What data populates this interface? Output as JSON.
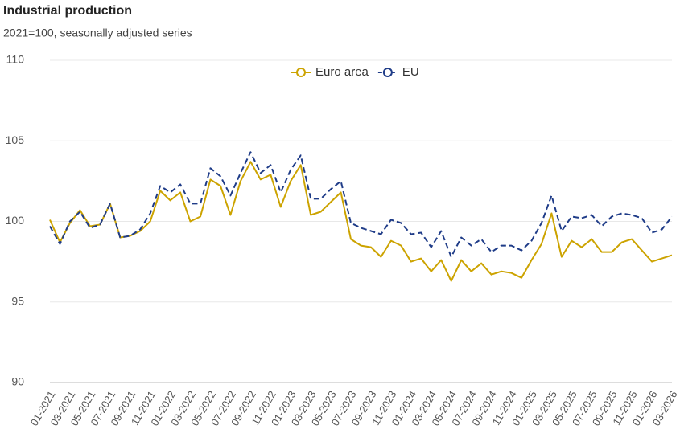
{
  "chart_data": {
    "type": "line",
    "title": "Industrial production",
    "subtitle": "2021=100, seasonally adjusted series",
    "categories": [
      "01-2021",
      null,
      "03-2021",
      null,
      "05-2021",
      null,
      "07-2021",
      null,
      "09-2021",
      null,
      "11-2021",
      null,
      "01-2022",
      null,
      "03-2022",
      null,
      "05-2022",
      null,
      "07-2022",
      null,
      "09-2022",
      null,
      "11-2022",
      null,
      "01-2023",
      null,
      "03-2023",
      null,
      "05-2023",
      null,
      "07-2023",
      null,
      "09-2023",
      null,
      "11-2023",
      null,
      "01-2024",
      null,
      "03-2024",
      null,
      "05-2024",
      null,
      "07-2024",
      null,
      "09-2024",
      null,
      "11-2024",
      null,
      "01-2025",
      null,
      "03-2025",
      null,
      "05-2025",
      null,
      "07-2025",
      null,
      "09-2025",
      null,
      "11-2025",
      null,
      "01-2026",
      null,
      "03-2026"
    ],
    "series": [
      {
        "name": "Euro area",
        "color": "#cca300",
        "dashed": false,
        "values": [
          100.1,
          98.7,
          99.9,
          100.7,
          99.7,
          99.8,
          101.1,
          99.0,
          99.1,
          99.4,
          100.0,
          101.9,
          101.3,
          101.8,
          100.0,
          100.3,
          102.6,
          102.2,
          100.4,
          102.5,
          103.7,
          102.6,
          102.9,
          100.9,
          102.5,
          103.5,
          100.4,
          100.6,
          101.2,
          101.8,
          98.9,
          98.5,
          98.4,
          97.8,
          98.8,
          98.5,
          97.5,
          97.7,
          96.9,
          97.6,
          96.3,
          97.6,
          96.9,
          97.4,
          96.7,
          96.9,
          96.8,
          96.5,
          97.6,
          98.6,
          100.5,
          97.8,
          98.8,
          98.4,
          98.9,
          98.1,
          98.1,
          98.7,
          98.9,
          98.2,
          97.5,
          97.7,
          97.9
        ]
      },
      {
        "name": "EU",
        "color": "#1f3c88",
        "dashed": true,
        "values": [
          99.7,
          98.6,
          100.0,
          100.6,
          99.6,
          99.8,
          101.1,
          99.0,
          99.1,
          99.5,
          100.5,
          102.2,
          101.8,
          102.3,
          101.1,
          101.1,
          103.3,
          102.8,
          101.6,
          103.0,
          104.3,
          103.0,
          103.5,
          101.8,
          103.2,
          104.1,
          101.4,
          101.4,
          102.0,
          102.5,
          99.9,
          99.6,
          99.4,
          99.2,
          100.1,
          99.9,
          99.2,
          99.3,
          98.4,
          99.4,
          97.8,
          99.0,
          98.5,
          98.9,
          98.1,
          98.5,
          98.5,
          98.2,
          98.8,
          99.9,
          101.6,
          99.4,
          100.3,
          100.2,
          100.4,
          99.7,
          100.3,
          100.5,
          100.4,
          100.2,
          99.3,
          99.5,
          100.3
        ]
      }
    ],
    "ylim": [
      90,
      110
    ],
    "yticks": [
      90,
      95,
      100,
      105,
      110
    ],
    "grid": true,
    "legend": "top"
  }
}
